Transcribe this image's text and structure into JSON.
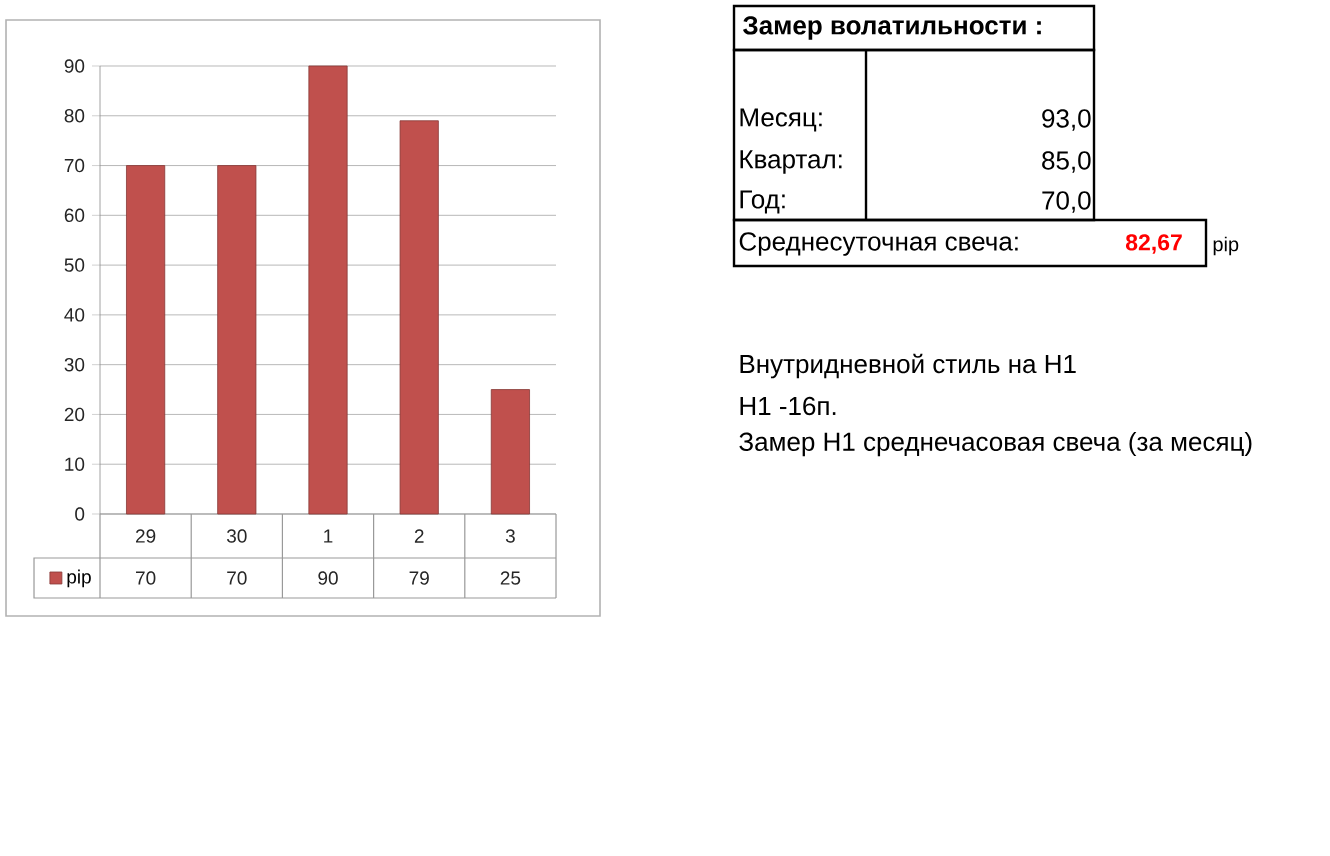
{
  "chart_data": [
    {
      "type": "bar",
      "categories": [
        "29",
        "30",
        "1",
        "2",
        "3"
      ],
      "series": [
        {
          "name": "pip",
          "color": "#c0504d",
          "values": [
            70,
            70,
            90,
            79,
            25
          ]
        }
      ],
      "ylim": [
        0,
        90
      ],
      "yticks": [
        0,
        10,
        20,
        30,
        40,
        50,
        60,
        70,
        80,
        90
      ],
      "grid": "y",
      "data_labels": true,
      "legend": "bottom left"
    },
    {
      "type": "other",
      "title": "Замер  волатильности  :",
      "annotations": [
        "Месяц:",
        "93,0",
        "Квартал:",
        "85,0",
        "Год:",
        "70,0",
        "Среднесуточная свеча:",
        "82,67",
        "pip",
        "Внутридневной стиль на H1",
        "H1 -16п.",
        "Замер H1 среднечасовая свеча (за месяц)"
      ]
    }
  ]
}
